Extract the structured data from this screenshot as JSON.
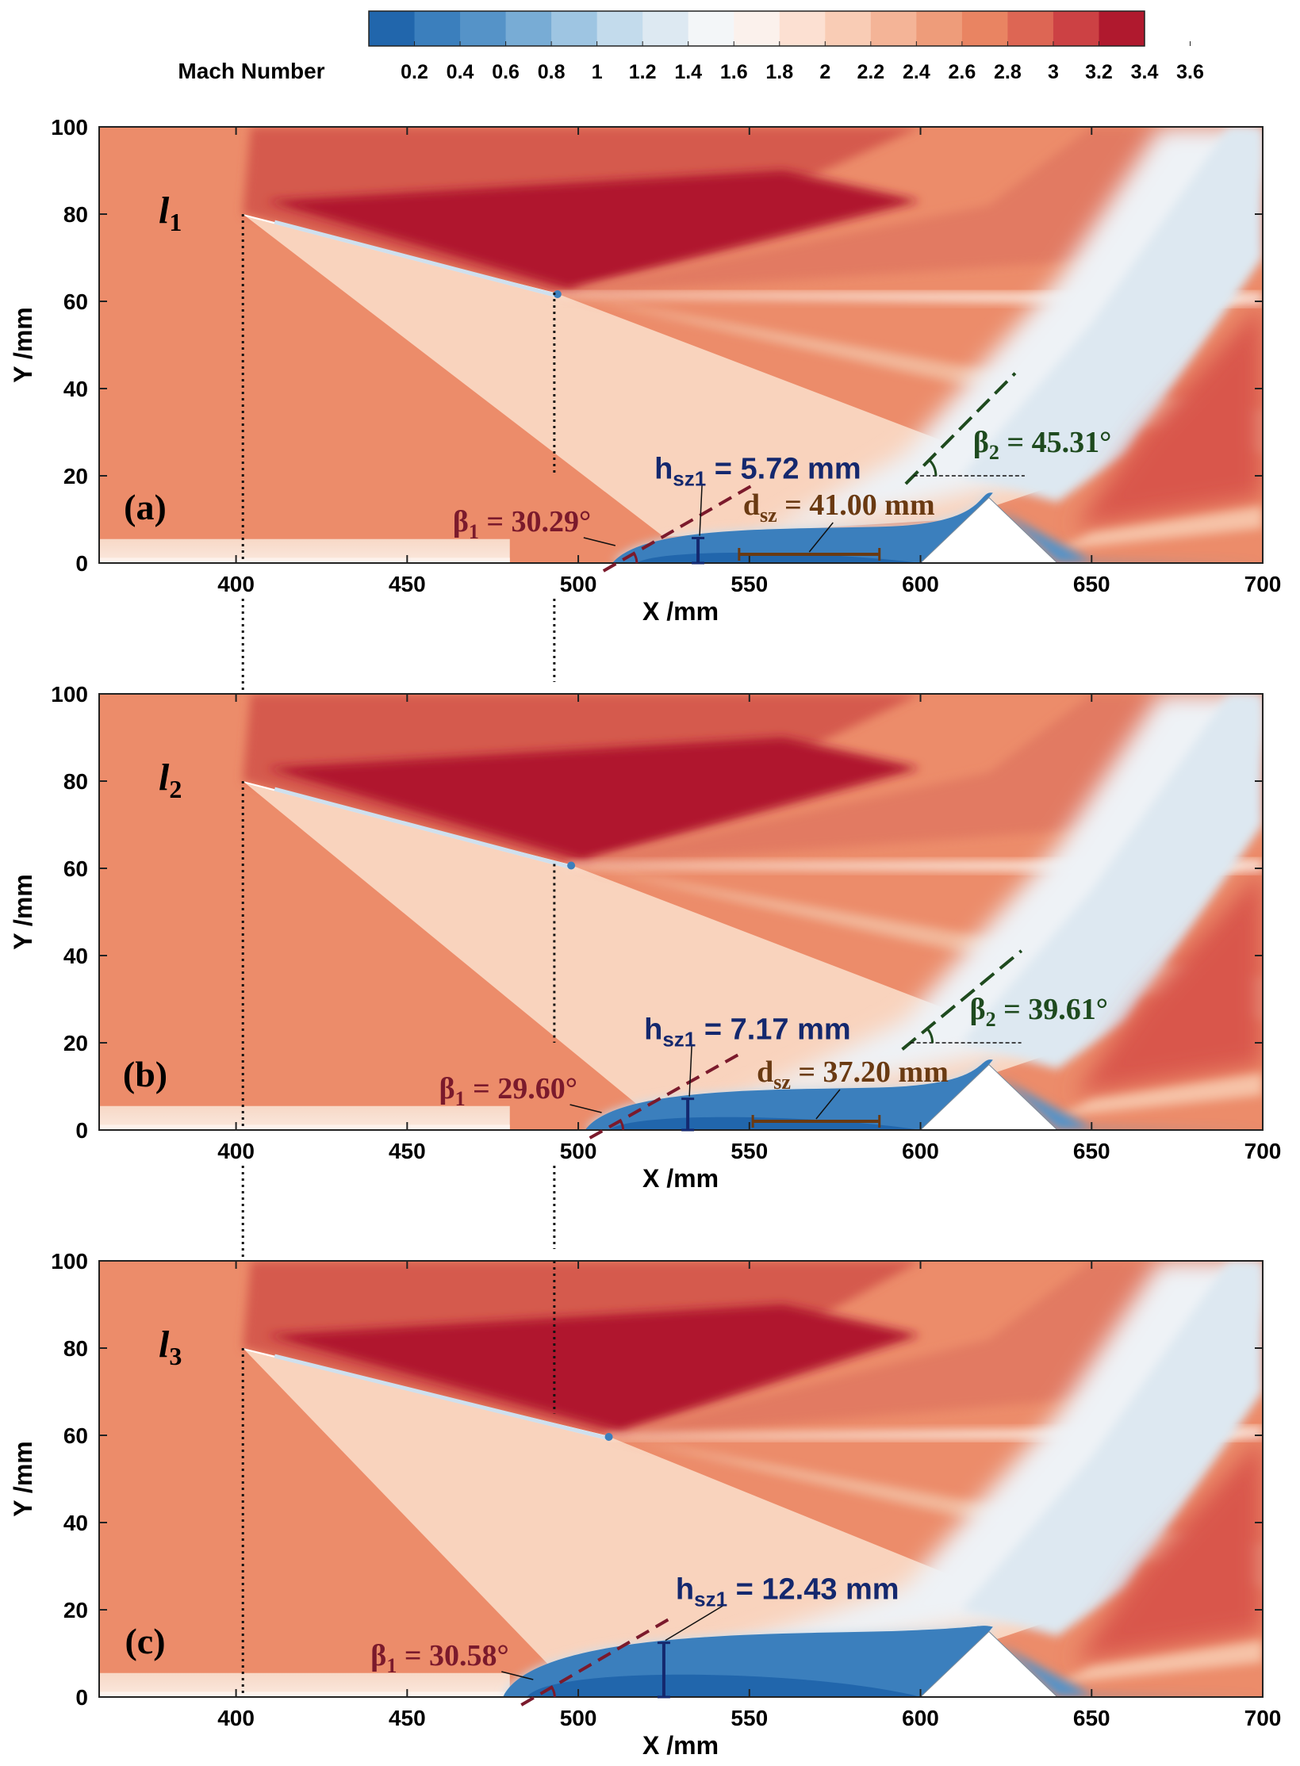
{
  "figure": {
    "colorbar": {
      "title": "Mach Number",
      "ticks": [
        "0.2",
        "0.4",
        "0.6",
        "0.8",
        "1",
        "1.2",
        "1.4",
        "1.6",
        "1.8",
        "2",
        "2.2",
        "2.4",
        "2.6",
        "2.8",
        "3",
        "3.2",
        "3.4",
        "3.6"
      ],
      "colors": [
        "#2166ac",
        "#3b7fbd",
        "#5593c8",
        "#78acd5",
        "#9ec5e2",
        "#c3dbec",
        "#dde9f2",
        "#f3f6f8",
        "#fbf1ec",
        "#fce0d2",
        "#f9ccb5",
        "#f4b497",
        "#ee9c7a",
        "#e98462",
        "#dd6654",
        "#cc4144",
        "#b0192e"
      ]
    },
    "axes": {
      "xlabel": "X /mm",
      "ylabel": "Y /mm",
      "xticks": [
        "400",
        "450",
        "500",
        "550",
        "600",
        "650",
        "700"
      ],
      "yticks": [
        "0",
        "20",
        "40",
        "60",
        "80",
        "100"
      ]
    },
    "panels": [
      {
        "tag": "(a)",
        "line_base": "l",
        "line_sub": "1",
        "beta1_text": "β",
        "beta1_sub": "1",
        "beta1_value": " = 30.29°",
        "beta2_text": "β",
        "beta2_sub": "2",
        "beta2_value": " = 45.31°",
        "h_text": "h",
        "h_sub": "sz1",
        "h_value": " = 5.72 mm",
        "d_text": "d",
        "d_sub": "sz",
        "d_value": " = 41.00 mm"
      },
      {
        "tag": "(b)",
        "line_base": "l",
        "line_sub": "2",
        "beta1_text": "β",
        "beta1_sub": "1",
        "beta1_value": " = 29.60°",
        "beta2_text": "β",
        "beta2_sub": "2",
        "beta2_value": " = 39.61°",
        "h_text": "h",
        "h_sub": "sz1",
        "h_value": " = 7.17 mm",
        "d_text": "d",
        "d_sub": "sz",
        "d_value": " = 37.20 mm"
      },
      {
        "tag": "(c)",
        "line_base": "l",
        "line_sub": "3",
        "beta1_text": "β",
        "beta1_sub": "1",
        "beta1_value": " = 30.58°",
        "h_text": "h",
        "h_sub": "sz1",
        "h_value": " = 12.43 mm"
      }
    ]
  },
  "chart_data": [
    {
      "type": "heatmap",
      "title": "(a)",
      "xlabel": "X /mm",
      "ylabel": "Y /mm",
      "xlim": [
        360,
        700
      ],
      "ylim": [
        0,
        100
      ],
      "colorbar_label": "Mach Number",
      "colorbar_range": [
        0.2,
        3.6
      ],
      "plate": {
        "x_start": 402,
        "y_start": 80,
        "x_end": 493,
        "y_end": 62
      },
      "ramp": {
        "x_start": 600,
        "x_peak": 620,
        "y_peak": 15,
        "x_end": 640
      },
      "separation_zone": {
        "x_start": 510,
        "x_end": 620,
        "h_sz1": 5.72,
        "h_sz1_x": 535,
        "d_sz": 41.0,
        "d_sz_x": [
          547,
          588
        ]
      },
      "beta1_deg": 30.29,
      "beta1_origin": [
        512,
        0
      ],
      "beta2_deg": 45.31,
      "beta2_origin": [
        598,
        20
      ]
    },
    {
      "type": "heatmap",
      "title": "(b)",
      "xlabel": "X /mm",
      "ylabel": "Y /mm",
      "xlim": [
        360,
        700
      ],
      "ylim": [
        0,
        100
      ],
      "colorbar_label": "Mach Number",
      "colorbar_range": [
        0.2,
        3.6
      ],
      "plate": {
        "x_start": 402,
        "y_start": 80,
        "x_end": 497,
        "y_end": 61
      },
      "ramp": {
        "x_start": 600,
        "x_peak": 620,
        "y_peak": 15,
        "x_end": 640
      },
      "separation_zone": {
        "x_start": 502,
        "x_end": 620,
        "h_sz1": 7.17,
        "h_sz1_x": 532,
        "d_sz": 37.2,
        "d_sz_x": [
          551,
          588
        ]
      },
      "beta1_deg": 29.6,
      "beta1_origin": [
        508,
        0
      ],
      "beta2_deg": 39.61,
      "beta2_origin": [
        597,
        20
      ]
    },
    {
      "type": "heatmap",
      "title": "(c)",
      "xlabel": "X /mm",
      "ylabel": "Y /mm",
      "xlim": [
        360,
        700
      ],
      "ylim": [
        0,
        100
      ],
      "colorbar_label": "Mach Number",
      "colorbar_range": [
        0.2,
        3.6
      ],
      "plate": {
        "x_start": 402,
        "y_start": 80,
        "x_end": 508,
        "y_end": 60
      },
      "ramp": {
        "x_start": 600,
        "x_peak": 620,
        "y_peak": 15,
        "x_end": 640
      },
      "separation_zone": {
        "x_start": 478,
        "x_end": 620,
        "h_sz1": 12.43,
        "h_sz1_x": 525
      },
      "beta1_deg": 30.58,
      "beta1_origin": [
        488,
        0
      ]
    }
  ]
}
